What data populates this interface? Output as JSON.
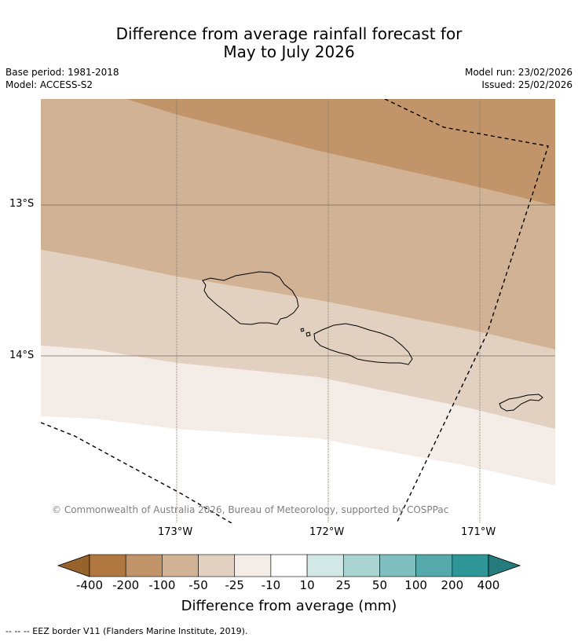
{
  "header": {
    "title_line1": "Difference from average rainfall forecast for",
    "title_line2": "May to July 2026",
    "base_period": "Base period: 1981-2018",
    "model": "Model: ACCESS-S2",
    "model_run": "Model run: 23/02/2026",
    "issued": "Issued: 25/02/2026"
  },
  "map": {
    "lat_labels": [
      "13°S",
      "14°S"
    ],
    "lon_labels": [
      "173°W",
      "172°W",
      "171°W"
    ],
    "copyright": "© Commonwealth of Australia 2026, Bureau of Meteorology, supported by COSPPac",
    "band_classes": [
      "-200 to -100",
      "-100 to -50",
      "-50 to -25",
      "-25 to -10",
      "-10 to 10"
    ]
  },
  "colorbar": {
    "ticks": [
      "-400",
      "-200",
      "-100",
      "-50",
      "-25",
      "-10",
      "10",
      "25",
      "50",
      "100",
      "200",
      "400"
    ],
    "colors": [
      "#98622c",
      "#b07840",
      "#c19469",
      "#d2b295",
      "#e2d1c1",
      "#f4ece6",
      "#ffffff",
      "#d3e9e8",
      "#aad4d2",
      "#80bfbf",
      "#56a9aa",
      "#2e9696",
      "#267b7c"
    ],
    "title": "Difference from average (mm)"
  },
  "footnote": "--  --  -- EEZ border V11 (Flanders Marine Institute, 2019)."
}
